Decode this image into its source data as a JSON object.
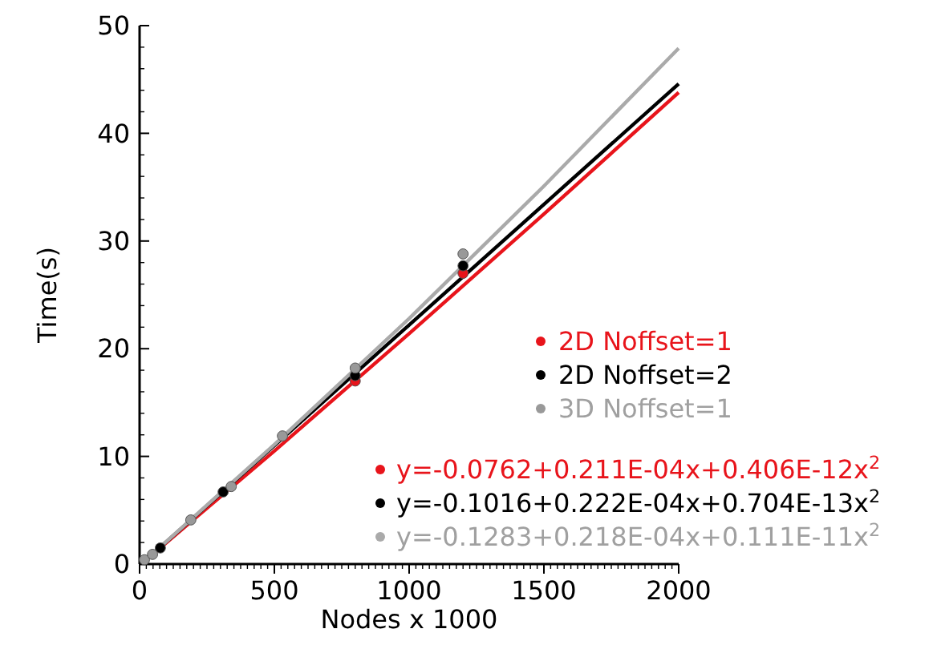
{
  "chart_data": {
    "type": "scatter",
    "xlabel": "Nodes x 1000",
    "ylabel": "Time(s)",
    "xlim": [
      0,
      2000
    ],
    "xticks": [
      0,
      500,
      1000,
      1500,
      2000
    ],
    "ylim": [
      0,
      50
    ],
    "yticks": [
      0,
      10,
      20,
      30,
      40,
      50
    ],
    "grid": false,
    "legend": "right",
    "marker": "circle",
    "series": [
      {
        "name": "2D Noffset=1",
        "color": "#e8141b",
        "x": [
          800,
          1200
        ],
        "values": [
          17.0,
          27.0
        ]
      },
      {
        "name": "2D Noffset=2",
        "color": "#000000",
        "x": [
          77,
          310,
          800,
          1200
        ],
        "values": [
          1.5,
          6.7,
          17.5,
          27.7
        ]
      },
      {
        "name": "3D Noffset=1",
        "color": "#999999",
        "x": [
          18,
          48,
          190,
          340,
          530,
          800,
          1200
        ],
        "values": [
          0.4,
          0.9,
          4.1,
          7.2,
          11.9,
          18.2,
          28.8
        ]
      },
      {
        "name": "y=-0.0762+0.211E-04x+0.406E-12x$^{2}$",
        "type": "line",
        "color": "#e8141b",
        "marker": "none",
        "x": [
          20,
          500,
          1000,
          1500,
          2000
        ],
        "values": [
          0.3,
          10.5,
          21.4,
          32.5,
          43.8
        ]
      },
      {
        "name": "y=-0.1016+0.222E-04x+0.704E-13x$^{2}$",
        "type": "line",
        "color": "#000000",
        "marker": "none",
        "x": [
          20,
          500,
          1000,
          1500,
          2000
        ],
        "values": [
          0.3,
          11.0,
          22.2,
          33.4,
          44.6
        ]
      },
      {
        "name": "y=-0.1283+0.218E-04x+0.111E-11x$^{2}$",
        "type": "line",
        "color": "#aaaaaa",
        "marker": "none",
        "x": [
          20,
          500,
          1000,
          1500,
          2000
        ],
        "values": [
          0.3,
          11.1,
          22.8,
          35.1,
          47.9
        ]
      }
    ]
  }
}
